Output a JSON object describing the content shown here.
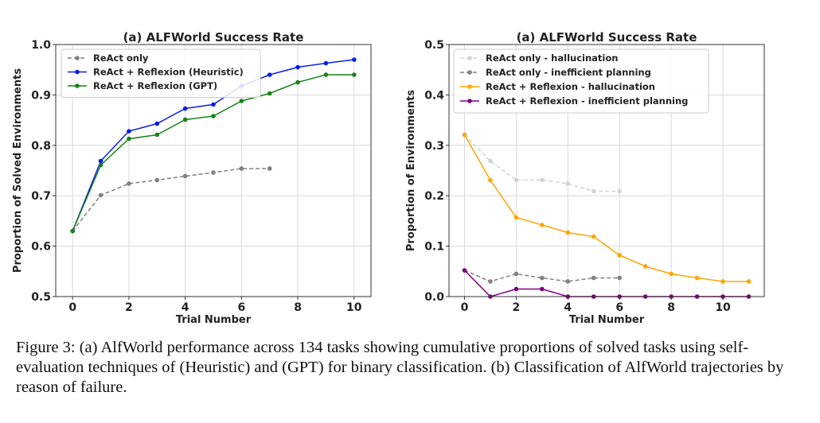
{
  "chart_data": [
    {
      "type": "line",
      "title": "(a) ALFWorld Success Rate",
      "xlabel": "Trial Number",
      "ylabel": "Proportion of Solved Environments",
      "xlim": [
        -0.6,
        10.6
      ],
      "ylim": [
        0.5,
        1.0
      ],
      "xticks": [
        0,
        2,
        4,
        6,
        8,
        10
      ],
      "yticks": [
        0.5,
        0.6,
        0.7,
        0.8,
        0.9,
        1.0
      ],
      "ytick_labels": [
        "0.5",
        "0.6",
        "0.7",
        "0.8",
        "0.9",
        "1.0"
      ],
      "grid": true,
      "legend_position": "upper-left",
      "series": [
        {
          "name": "ReAct only",
          "color": "#808080",
          "dashed": true,
          "x": [
            0,
            1,
            2,
            3,
            4,
            5,
            6,
            7
          ],
          "y": [
            0.63,
            0.701,
            0.724,
            0.731,
            0.739,
            0.746,
            0.754,
            0.754
          ]
        },
        {
          "name": "ReAct + Reflexion (Heuristic)",
          "color": "#0b1ee6",
          "dashed": false,
          "x": [
            0,
            1,
            2,
            3,
            4,
            5,
            6,
            7,
            8,
            9,
            10
          ],
          "y": [
            0.63,
            0.769,
            0.828,
            0.843,
            0.873,
            0.881,
            0.918,
            0.94,
            0.955,
            0.963,
            0.97
          ]
        },
        {
          "name": "ReAct + Reflexion (GPT)",
          "color": "#178217",
          "dashed": false,
          "x": [
            0,
            1,
            2,
            3,
            4,
            5,
            6,
            7,
            8,
            9,
            10
          ],
          "y": [
            0.63,
            0.761,
            0.813,
            0.821,
            0.851,
            0.858,
            0.888,
            0.903,
            0.925,
            0.94,
            0.94
          ]
        }
      ]
    },
    {
      "type": "line",
      "title": "(a) ALFWorld Success Rate",
      "xlabel": "Trial Number",
      "ylabel": "Proportion of Environments",
      "xlim": [
        -0.6,
        11.6
      ],
      "ylim": [
        0.0,
        0.5
      ],
      "xticks": [
        0,
        2,
        4,
        6,
        8,
        10
      ],
      "yticks": [
        0.0,
        0.1,
        0.2,
        0.3,
        0.4,
        0.5
      ],
      "ytick_labels": [
        "0.0",
        "0.1",
        "0.2",
        "0.3",
        "0.4",
        "0.5"
      ],
      "grid": true,
      "legend_position": "upper-left",
      "series": [
        {
          "name": "ReAct only - hallucination",
          "color": "#d3d3d3",
          "dashed": true,
          "x": [
            0,
            1,
            2,
            3,
            4,
            5,
            6
          ],
          "y": [
            0.321,
            0.269,
            0.231,
            0.231,
            0.224,
            0.209,
            0.209
          ]
        },
        {
          "name": "ReAct only - inefficient planning",
          "color": "#808080",
          "dashed": true,
          "x": [
            0,
            1,
            2,
            3,
            4,
            5,
            6
          ],
          "y": [
            0.052,
            0.03,
            0.045,
            0.037,
            0.03,
            0.037,
            0.037
          ]
        },
        {
          "name": "ReAct + Reflexion - hallucination",
          "color": "#ffa500",
          "dashed": false,
          "x": [
            0,
            1,
            2,
            3,
            4,
            5,
            6,
            7,
            8,
            9,
            10,
            11
          ],
          "y": [
            0.321,
            0.231,
            0.157,
            0.142,
            0.127,
            0.119,
            0.082,
            0.06,
            0.045,
            0.037,
            0.03,
            0.03
          ]
        },
        {
          "name": "ReAct + Reflexion - inefficient planning",
          "color": "#800080",
          "dashed": false,
          "x": [
            0,
            1,
            2,
            3,
            4,
            5,
            6,
            7,
            8,
            9,
            10,
            11
          ],
          "y": [
            0.052,
            0.0,
            0.015,
            0.015,
            0.0,
            0.0,
            0.0,
            0.0,
            0.0,
            0.0,
            0.0,
            0.0
          ]
        }
      ]
    }
  ],
  "caption": "Figure 3: (a) AlfWorld performance across 134 tasks showing cumulative proportions of solved tasks using self-evaluation techniques of (Heuristic) and (GPT) for binary classification. (b) Classification of AlfWorld trajectories by reason of failure."
}
